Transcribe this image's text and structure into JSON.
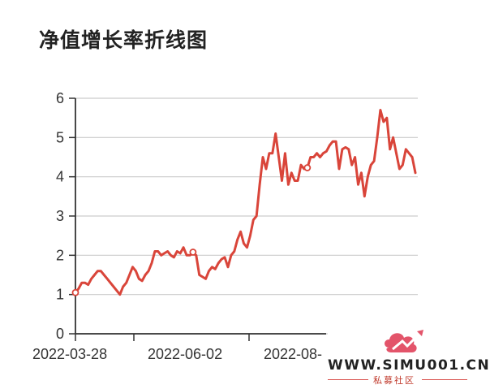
{
  "title": "净值增长率折线图",
  "colors": {
    "line": "#d9453a",
    "axis": "#333333",
    "grid": "#cccccc",
    "text": "#333333"
  },
  "watermark": {
    "text": "WWW.SIMU001.CN",
    "sub": "私募社区",
    "logo": "simu-logo-icon"
  },
  "chart_data": {
    "type": "line",
    "title": "",
    "xlabel": "",
    "ylabel": "",
    "ylim": [
      0,
      6
    ],
    "yticks": [
      0,
      1,
      2,
      3,
      4,
      5,
      6
    ],
    "xticks": [
      "2022-03-28",
      "2022-06-02",
      "2022-08-"
    ],
    "grid": true,
    "marked_points": [
      {
        "x": "2022-03-28",
        "y": 1.05
      },
      {
        "x": "2022-05-30",
        "y": 2.08
      },
      {
        "x": "2022-08-22",
        "y": 4.23
      }
    ],
    "series": [
      {
        "values": [
          1.05,
          1.15,
          1.3,
          1.3,
          1.25,
          1.4,
          1.5,
          1.6,
          1.6,
          1.5,
          1.4,
          1.3,
          1.2,
          1.1,
          1.0,
          1.2,
          1.3,
          1.5,
          1.7,
          1.6,
          1.4,
          1.35,
          1.5,
          1.6,
          1.8,
          2.1,
          2.1,
          2.0,
          2.05,
          2.1,
          2.0,
          1.95,
          2.1,
          2.05,
          2.2,
          2.0,
          2.0,
          2.05,
          2.0,
          1.5,
          1.45,
          1.4,
          1.6,
          1.7,
          1.65,
          1.8,
          1.9,
          1.95,
          1.7,
          2.0,
          2.1,
          2.4,
          2.6,
          2.3,
          2.2,
          2.5,
          2.9,
          3.0,
          3.8,
          4.5,
          4.2,
          4.6,
          4.6,
          5.1,
          4.5,
          3.9,
          4.6,
          3.8,
          4.1,
          3.9,
          3.9,
          4.3,
          4.2,
          4.23,
          4.5,
          4.5,
          4.6,
          4.5,
          4.6,
          4.65,
          4.8,
          4.9,
          4.9,
          4.2,
          4.7,
          4.75,
          4.7,
          4.3,
          4.5,
          3.8,
          4.1,
          3.5,
          4.0,
          4.3,
          4.4,
          5.0,
          5.7,
          5.4,
          5.5,
          4.7,
          5.0,
          4.6,
          4.2,
          4.3,
          4.7,
          4.6,
          4.5,
          4.1
        ]
      }
    ]
  }
}
